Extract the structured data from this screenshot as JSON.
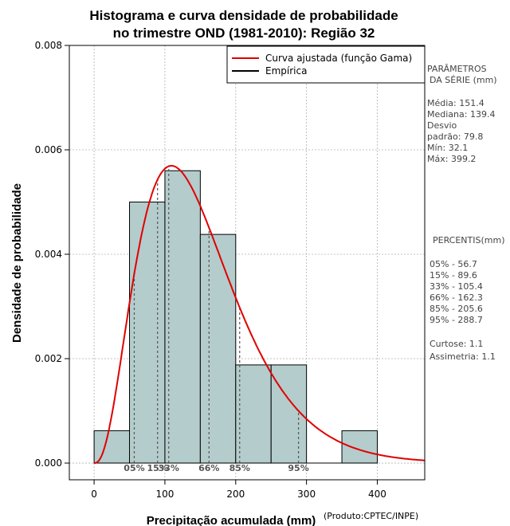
{
  "chart_data": {
    "type": "bar",
    "title_line1": "Histograma e curva densidade de probabilidade",
    "title_line2": "no trimestre OND (1981-2010): Região 32",
    "xlabel": "Precipitação acumulada (mm)",
    "ylabel": "Densidade de probabilidade",
    "credit": "(Produto:CPTEC/INPE)",
    "xlim": [
      -35,
      467
    ],
    "ylim": [
      -0.00032,
      0.008
    ],
    "xticks": [
      0,
      100,
      200,
      300,
      400
    ],
    "yticks": [
      0.0,
      0.002,
      0.004,
      0.006,
      0.008
    ],
    "ytick_labels": [
      "0.000",
      "0.002",
      "0.004",
      "0.006",
      "0.008"
    ],
    "bins": [
      {
        "x0": 0,
        "x1": 50,
        "density": 0.00062
      },
      {
        "x0": 50,
        "x1": 100,
        "density": 0.005
      },
      {
        "x0": 100,
        "x1": 150,
        "density": 0.0056
      },
      {
        "x0": 150,
        "x1": 200,
        "density": 0.00438
      },
      {
        "x0": 200,
        "x1": 250,
        "density": 0.00188
      },
      {
        "x0": 250,
        "x1": 300,
        "density": 0.00188
      },
      {
        "x0": 300,
        "x1": 350,
        "density": 0.0
      },
      {
        "x0": 350,
        "x1": 400,
        "density": 0.00062
      }
    ],
    "gamma_fit": {
      "shape": 3.59,
      "rate": 0.02372,
      "x_start": 0,
      "x_end": 467
    },
    "percentile_lines": [
      56.7,
      89.6,
      105.4,
      162.3,
      205.6,
      288.7
    ],
    "percentile_labels": [
      {
        "x": 56.7,
        "text": "05%"
      },
      {
        "x": 89.6,
        "text": "15%"
      },
      {
        "x": 105.4,
        "text": "33%"
      },
      {
        "x": 162.3,
        "text": "66%"
      },
      {
        "x": 205.6,
        "text": "85%"
      },
      {
        "x": 288.7,
        "text": "95%"
      }
    ],
    "legend": [
      {
        "label": "Curva ajustada (função Gama)",
        "color": "#e00000"
      },
      {
        "label": "Empírica",
        "color": "#000000"
      }
    ],
    "colors": {
      "bar_fill": "#b4cccc",
      "bar_stroke": "#000000",
      "curve": "#e00000",
      "grid": "#b0b0b0",
      "percentile_line": "#555555"
    }
  },
  "params_panel": {
    "title_line1": "PARÂMETROS",
    "title_line2": "DA SÉRIE (mm)",
    "media": "Média:  151.4",
    "mediana": "Mediana:  139.4",
    "desvio1": "Desvio",
    "desvio2": "padrão:  79.8",
    "min": "Mín:  32.1",
    "max": "Máx:  399.2"
  },
  "percentis_panel": {
    "title": "PERCENTIS(mm)",
    "rows": [
      "05% -  56.7",
      "15% -  89.6",
      "33% -  105.4",
      "66% -  162.3",
      "85% -  205.6",
      "95% -  288.7"
    ],
    "curtose": "Curtose:  1.1",
    "assimetria": "Assimetria:  1.1"
  }
}
